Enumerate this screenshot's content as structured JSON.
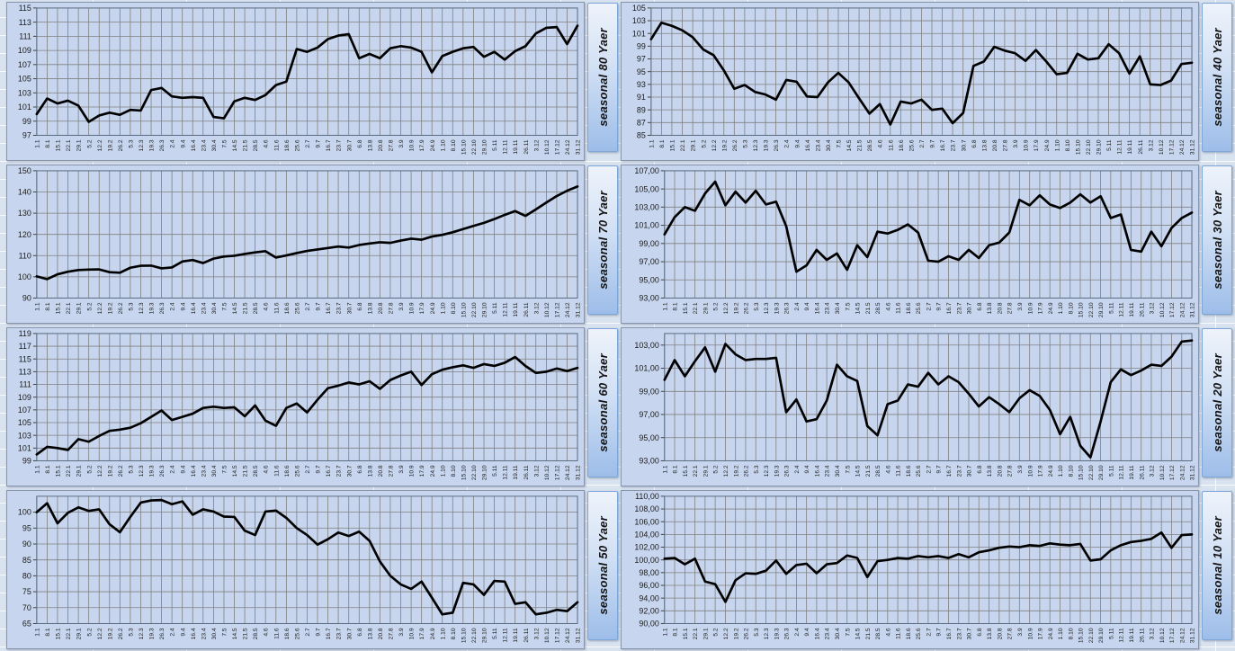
{
  "style": {
    "sheet_bg": "#d9e2ef",
    "sheet_gridline": "#ffffff",
    "plot_bg": "#c7d6ee",
    "grid_color": "#808080",
    "axis_color": "#5a6b80",
    "line_color": "#000000",
    "tick_text_color": "#1a1a1a",
    "label_box_gradient_top": "#eef3fb",
    "label_box_gradient_bottom": "#9dbde9",
    "label_box_border": "#7da7d8",
    "chart_border": "#8696ad"
  },
  "categories": [
    "1.1",
    "8.1",
    "15.1",
    "22.1",
    "29.1",
    "5.2",
    "12.2",
    "19.2",
    "26.2",
    "5.3",
    "12.3",
    "19.3",
    "26.3",
    "2.4",
    "9.4",
    "16.4",
    "23.4",
    "30.4",
    "7.5",
    "14.5",
    "21.5",
    "28.5",
    "4.6",
    "11.6",
    "18.6",
    "25.6",
    "2.7",
    "9.7",
    "16.7",
    "23.7",
    "30.7",
    "6.8",
    "13.8",
    "20.8",
    "27.8",
    "3.9",
    "10.9",
    "17.9",
    "24.9",
    "1.10",
    "8.10",
    "15.10",
    "22.10",
    "29.10",
    "5.11",
    "12.11",
    "19.11",
    "26.11",
    "3.12",
    "10.12",
    "17.12",
    "24.12",
    "31.12"
  ],
  "chart_data": [
    {
      "type": "line",
      "title": "seasonal 80 Yaer",
      "categories": "shared - see top-level categories (weekly dates 1.1-31.12)",
      "ylim": [
        97,
        115
      ],
      "decimal_labels": false,
      "yticks": [
        115,
        113,
        111,
        109,
        107,
        105,
        103,
        101,
        99,
        97
      ],
      "ytick_labels": [
        "115",
        "113",
        "111",
        "109",
        "107",
        "105",
        "103",
        "101",
        "99",
        "97"
      ],
      "values": [
        100.0,
        102.2,
        101.5,
        101.9,
        101.2,
        98.9,
        99.8,
        100.2,
        99.9,
        100.6,
        100.5,
        103.4,
        103.7,
        102.5,
        102.3,
        102.4,
        102.3,
        99.6,
        99.4,
        101.8,
        102.3,
        102.0,
        102.7,
        104.1,
        104.6,
        109.2,
        108.8,
        109.4,
        110.6,
        111.1,
        111.3,
        107.9,
        108.5,
        107.9,
        109.3,
        109.6,
        109.4,
        108.8,
        105.9,
        108.2,
        108.8,
        109.3,
        109.5,
        108.1,
        108.8,
        107.7,
        108.9,
        109.6,
        111.4,
        112.2,
        112.3,
        109.9,
        112.5
      ]
    },
    {
      "type": "line",
      "title": "seasonal 40 Yaer",
      "categories": "shared - see top-level categories (weekly dates 1.1-31.12)",
      "ylim": [
        85,
        105
      ],
      "decimal_labels": false,
      "yticks": [
        105,
        103,
        101,
        99,
        97,
        95,
        93,
        91,
        89,
        87,
        85
      ],
      "ytick_labels": [
        "105",
        "103",
        "101",
        "99",
        "97",
        "95",
        "93",
        "91",
        "89",
        "87",
        "85"
      ],
      "values": [
        100.1,
        102.7,
        102.2,
        101.5,
        100.4,
        98.5,
        97.6,
        95.2,
        92.3,
        92.9,
        91.8,
        91.4,
        90.6,
        93.7,
        93.4,
        91.1,
        91.0,
        93.3,
        94.8,
        93.3,
        90.8,
        88.4,
        89.9,
        86.7,
        90.3,
        90.0,
        90.6,
        89.0,
        89.2,
        86.9,
        88.5,
        95.9,
        96.6,
        98.9,
        98.3,
        97.9,
        96.7,
        98.4,
        96.6,
        94.6,
        94.8,
        97.8,
        96.9,
        97.1,
        99.3,
        97.9,
        94.7,
        97.4,
        93.0,
        92.9,
        93.6,
        96.2,
        96.4
      ]
    },
    {
      "type": "line",
      "title": "seasonal 70 Yaer",
      "categories": "shared - see top-level categories (weekly dates 1.1-31.12)",
      "ylim": [
        90,
        150
      ],
      "decimal_labels": false,
      "yticks": [
        150,
        140,
        130,
        120,
        110,
        100,
        90
      ],
      "ytick_labels": [
        "150",
        "140",
        "130",
        "120",
        "110",
        "100",
        "90"
      ],
      "values": [
        100.2,
        98.9,
        101.2,
        102.4,
        103.2,
        103.4,
        103.5,
        102.2,
        101.9,
        104.3,
        105.2,
        105.3,
        104.0,
        104.4,
        107.2,
        107.9,
        106.5,
        108.6,
        109.6,
        109.9,
        110.8,
        111.5,
        112.1,
        109.1,
        110.1,
        111.2,
        112.2,
        112.9,
        113.6,
        114.3,
        113.8,
        115.0,
        115.7,
        116.3,
        116.0,
        117.1,
        118.0,
        117.5,
        119.0,
        119.8,
        121.0,
        122.5,
        124.0,
        125.4,
        127.2,
        129.2,
        131.0,
        128.7,
        131.8,
        135.0,
        138.1,
        140.6,
        142.6
      ]
    },
    {
      "type": "line",
      "title": "seasonal 30 Yaer",
      "categories": "shared - see top-level categories (weekly dates 1.1-31.12)",
      "ylim": [
        93,
        107
      ],
      "decimal_labels": true,
      "yticks": [
        107,
        105,
        103,
        101,
        99,
        97,
        95,
        93
      ],
      "ytick_labels": [
        "107,00",
        "105,00",
        "103,00",
        "101,00",
        "99,00",
        "97,00",
        "95,00",
        "93,00"
      ],
      "values": [
        100.0,
        101.9,
        103.0,
        102.6,
        104.5,
        105.8,
        103.2,
        104.7,
        103.5,
        104.8,
        103.3,
        103.6,
        100.9,
        95.9,
        96.6,
        98.3,
        97.2,
        97.9,
        96.1,
        98.8,
        97.5,
        100.3,
        100.1,
        100.5,
        101.1,
        100.2,
        97.1,
        97.0,
        97.6,
        97.2,
        98.3,
        97.4,
        98.8,
        99.1,
        100.2,
        103.8,
        103.2,
        104.3,
        103.3,
        102.9,
        103.5,
        104.4,
        103.5,
        104.2,
        101.8,
        102.2,
        98.3,
        98.1,
        100.3,
        98.7,
        100.7,
        101.8,
        102.4
      ]
    },
    {
      "type": "line",
      "title": "seasonal 60 Yaer",
      "categories": "shared - see top-level categories (weekly dates 1.1-31.12)",
      "ylim": [
        99,
        119
      ],
      "decimal_labels": false,
      "yticks": [
        119,
        117,
        115,
        113,
        111,
        109,
        107,
        105,
        103,
        101,
        99
      ],
      "ytick_labels": [
        "119",
        "117",
        "115",
        "113",
        "111",
        "109",
        "107",
        "105",
        "103",
        "101",
        "99"
      ],
      "values": [
        100.0,
        101.2,
        101.0,
        100.7,
        102.4,
        102.0,
        102.9,
        103.7,
        103.9,
        104.2,
        104.9,
        105.9,
        106.9,
        105.4,
        105.9,
        106.4,
        107.3,
        107.5,
        107.3,
        107.4,
        106.0,
        107.7,
        105.3,
        104.5,
        107.3,
        108.0,
        106.6,
        108.6,
        110.4,
        110.8,
        111.3,
        111.0,
        111.5,
        110.3,
        111.7,
        112.4,
        113.0,
        110.9,
        112.6,
        113.3,
        113.7,
        114.0,
        113.6,
        114.2,
        113.9,
        114.4,
        115.3,
        113.9,
        112.8,
        113.0,
        113.5,
        113.1,
        113.6
      ]
    },
    {
      "type": "line",
      "title": "seasonal 20 Yaer",
      "categories": "shared - see top-level categories (weekly dates 1.1-31.12)",
      "ylim": [
        93,
        104
      ],
      "decimal_labels": true,
      "yticks": [
        103,
        101,
        99,
        97,
        95,
        93
      ],
      "ytick_labels": [
        "103,00",
        "101,00",
        "99,00",
        "97,00",
        "95,00",
        "93,00"
      ],
      "values": [
        100.0,
        101.7,
        100.3,
        101.6,
        102.8,
        100.7,
        103.1,
        102.2,
        101.7,
        101.8,
        101.8,
        101.9,
        97.2,
        98.3,
        96.4,
        96.6,
        98.2,
        101.3,
        100.3,
        99.9,
        96.0,
        95.2,
        97.9,
        98.2,
        99.6,
        99.4,
        100.6,
        99.6,
        100.3,
        99.8,
        98.8,
        97.7,
        98.5,
        97.9,
        97.2,
        98.4,
        99.1,
        98.6,
        97.4,
        95.3,
        96.8,
        94.3,
        93.3,
        96.4,
        99.8,
        100.9,
        100.4,
        100.8,
        101.3,
        101.2,
        102.0,
        103.3,
        103.4
      ]
    },
    {
      "type": "line",
      "title": "seasonal 50 Yaer",
      "categories": "shared - see top-level categories (weekly dates 1.1-31.12)",
      "ylim": [
        65,
        105
      ],
      "decimal_labels": false,
      "yticks": [
        100,
        95,
        90,
        85,
        80,
        75,
        70,
        65
      ],
      "ytick_labels": [
        "100",
        "95",
        "90",
        "85",
        "80",
        "75",
        "70",
        "65"
      ],
      "values": [
        100.0,
        102.8,
        96.5,
        99.8,
        101.5,
        100.4,
        100.9,
        96.2,
        93.7,
        98.5,
        103.0,
        103.7,
        103.8,
        102.5,
        103.4,
        99.2,
        100.9,
        100.2,
        98.6,
        98.5,
        94.2,
        92.8,
        100.2,
        100.5,
        98.2,
        95.0,
        92.8,
        89.8,
        91.5,
        93.6,
        92.5,
        93.9,
        91.0,
        84.5,
        80.0,
        77.3,
        75.9,
        78.2,
        73.1,
        67.9,
        68.4,
        77.8,
        77.3,
        74.0,
        78.4,
        78.2,
        71.2,
        71.7,
        67.9,
        68.4,
        69.3,
        68.9,
        71.7
      ]
    },
    {
      "type": "line",
      "title": "seasonal 10 Yaer",
      "categories": "shared - see top-level categories (weekly dates 1.1-31.12)",
      "ylim": [
        90,
        110
      ],
      "decimal_labels": true,
      "yticks": [
        110,
        108,
        106,
        104,
        102,
        100,
        98,
        96,
        94,
        92,
        90
      ],
      "ytick_labels": [
        "110,00",
        "108,00",
        "106,00",
        "104,00",
        "102,00",
        "100,00",
        "98,00",
        "96,00",
        "94,00",
        "92,00",
        "90,00"
      ],
      "values": [
        100.2,
        100.3,
        99.3,
        100.2,
        96.6,
        96.2,
        93.4,
        96.8,
        97.9,
        97.8,
        98.3,
        99.9,
        97.8,
        99.2,
        99.4,
        97.9,
        99.3,
        99.5,
        100.7,
        100.3,
        97.3,
        99.8,
        100.0,
        100.3,
        100.2,
        100.6,
        100.4,
        100.6,
        100.3,
        100.9,
        100.4,
        101.2,
        101.5,
        101.9,
        102.1,
        102.0,
        102.3,
        102.2,
        102.6,
        102.4,
        102.3,
        102.5,
        99.9,
        100.1,
        101.5,
        102.3,
        102.8,
        103.0,
        103.3,
        104.3,
        101.9,
        103.9,
        104.0
      ]
    }
  ]
}
